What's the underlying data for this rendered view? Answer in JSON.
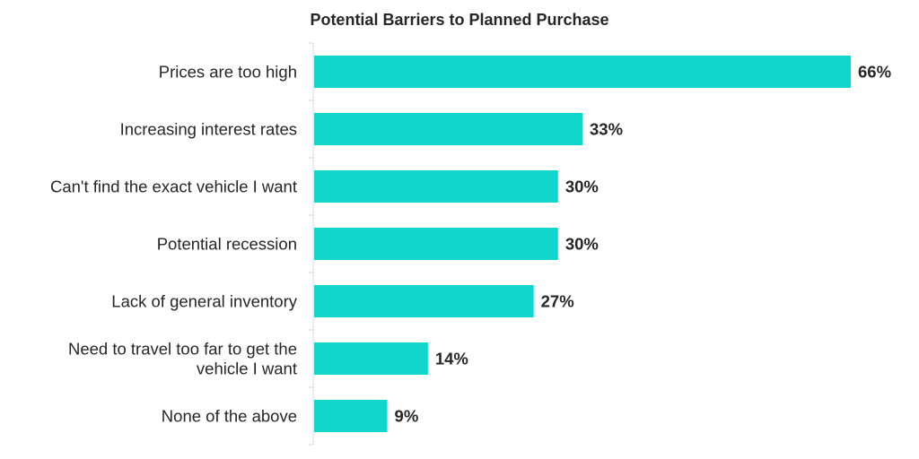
{
  "chart_data": {
    "type": "bar",
    "orientation": "horizontal",
    "title": "Potential Barriers to Planned Purchase",
    "categories": [
      [
        "Prices are too high"
      ],
      [
        "Increasing interest rates"
      ],
      [
        "Can't find the exact vehicle I want"
      ],
      [
        "Potential recession"
      ],
      [
        "Lack of general inventory"
      ],
      [
        "Need to travel too far to get the",
        "vehicle I want"
      ],
      [
        "None of the above"
      ]
    ],
    "values": [
      66,
      33,
      30,
      30,
      27,
      14,
      9
    ],
    "value_labels": [
      "66%",
      "33%",
      "30%",
      "30%",
      "27%",
      "14%",
      "9%"
    ],
    "unit": "%",
    "xlim": [
      0,
      66
    ],
    "grid": false,
    "legend": "none",
    "colors": {
      "bar": "#11D6CC",
      "text": "#262626",
      "axis": "#D9D9D9"
    }
  }
}
